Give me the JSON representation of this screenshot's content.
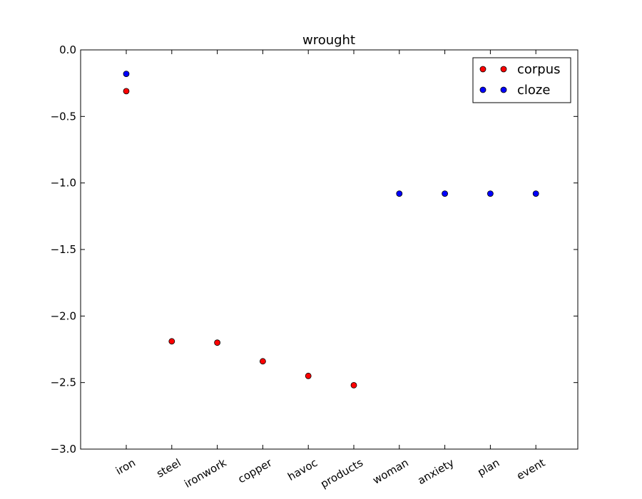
{
  "chart_data": {
    "type": "scatter",
    "title": "wrought",
    "xlabel": "",
    "ylabel": "",
    "categories": [
      "iron",
      "steel",
      "ironwork",
      "copper",
      "havoc",
      "products",
      "woman",
      "anxiety",
      "plan",
      "event"
    ],
    "ylim": [
      -3.0,
      0.0
    ],
    "yticks": [
      0.0,
      -0.5,
      -1.0,
      -1.5,
      -2.0,
      -2.5,
      -3.0
    ],
    "ytick_labels": [
      "0.0",
      "−0.5",
      "−1.0",
      "−1.5",
      "−2.0",
      "−2.5",
      "−3.0"
    ],
    "grid": false,
    "legend_position": "top-right",
    "series": [
      {
        "name": "corpus",
        "color": "#ff0000",
        "points": [
          {
            "category": "iron",
            "value": -0.31
          },
          {
            "category": "steel",
            "value": -2.19
          },
          {
            "category": "ironwork",
            "value": -2.2
          },
          {
            "category": "copper",
            "value": -2.34
          },
          {
            "category": "havoc",
            "value": -2.45
          },
          {
            "category": "products",
            "value": -2.52
          }
        ]
      },
      {
        "name": "cloze",
        "color": "#0000ff",
        "points": [
          {
            "category": "iron",
            "value": -0.18
          },
          {
            "category": "woman",
            "value": -1.08
          },
          {
            "category": "anxiety",
            "value": -1.08
          },
          {
            "category": "plan",
            "value": -1.08
          },
          {
            "category": "event",
            "value": -1.08
          }
        ]
      }
    ]
  }
}
